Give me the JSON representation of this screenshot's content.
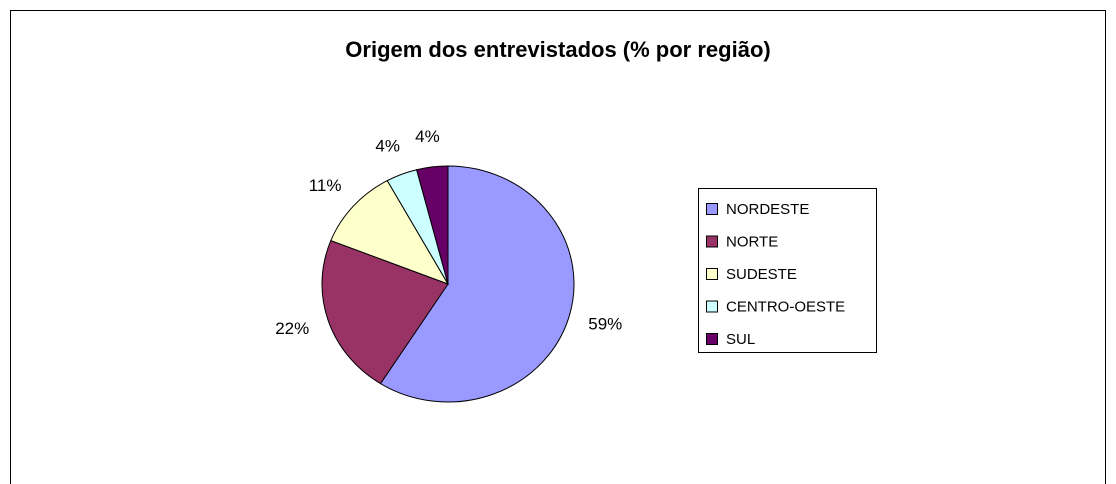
{
  "chart_data": {
    "type": "pie",
    "title": "Origem dos entrevistados (% por região)",
    "categories": [
      "NORDESTE",
      "NORTE",
      "SUDESTE",
      "CENTRO-OESTE",
      "SUL"
    ],
    "values": [
      59,
      22,
      11,
      4,
      4
    ],
    "value_labels": [
      "59%",
      "22%",
      "11%",
      "4%",
      "4%"
    ],
    "colors": [
      "#9999ff",
      "#993366",
      "#ffffcc",
      "#ccffff",
      "#660066"
    ],
    "legend": "right"
  }
}
